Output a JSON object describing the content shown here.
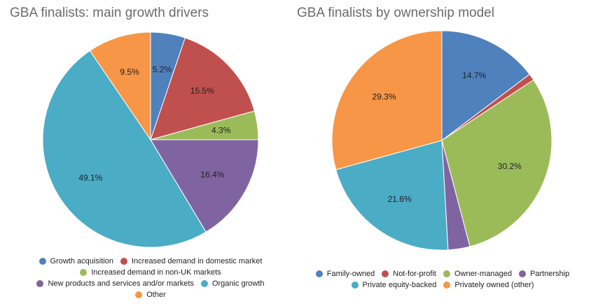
{
  "chart_data": [
    {
      "type": "pie",
      "title": "GBA finalists: main growth drivers",
      "slices": [
        {
          "label": "Growth acquisition",
          "value": 5.2,
          "display": "5.2%",
          "color": "#4f81bd"
        },
        {
          "label": "Increased demand in domestic market",
          "value": 15.5,
          "display": "15.5%",
          "color": "#c0504d"
        },
        {
          "label": "Increased demand in non-UK markets",
          "value": 4.3,
          "display": "4.3%",
          "color": "#9bbb59"
        },
        {
          "label": "New products and services and/or markets",
          "value": 16.4,
          "display": "16.4%",
          "color": "#8064a2"
        },
        {
          "label": "Organic growth",
          "value": 49.1,
          "display": "49.1%",
          "color": "#4bacc6"
        },
        {
          "label": "Other",
          "value": 9.5,
          "display": "9.5%",
          "color": "#f79646"
        }
      ],
      "legend_rows": [
        [
          0,
          1
        ],
        [
          2
        ],
        [
          3,
          4
        ],
        [
          5
        ]
      ],
      "legend_position": "bottom"
    },
    {
      "type": "pie",
      "title": "GBA finalists by ownership model",
      "slices": [
        {
          "label": "Family-owned",
          "value": 14.7,
          "display": "14.7%",
          "color": "#4f81bd"
        },
        {
          "label": "Not-for-profit",
          "value": 1.0,
          "display": "",
          "color": "#c0504d"
        },
        {
          "label": "Owner-managed",
          "value": 30.2,
          "display": "30.2%",
          "color": "#9bbb59"
        },
        {
          "label": "Partnership",
          "value": 3.2,
          "display": "",
          "color": "#8064a2"
        },
        {
          "label": "Private equity-backed",
          "value": 21.6,
          "display": "21.6%",
          "color": "#4bacc6"
        },
        {
          "label": "Privately owned (other)",
          "value": 29.3,
          "display": "29.3%",
          "color": "#f79646"
        }
      ],
      "legend_rows": [
        [
          0,
          1,
          2,
          3
        ],
        [
          4,
          5
        ]
      ],
      "legend_position": "bottom"
    }
  ]
}
